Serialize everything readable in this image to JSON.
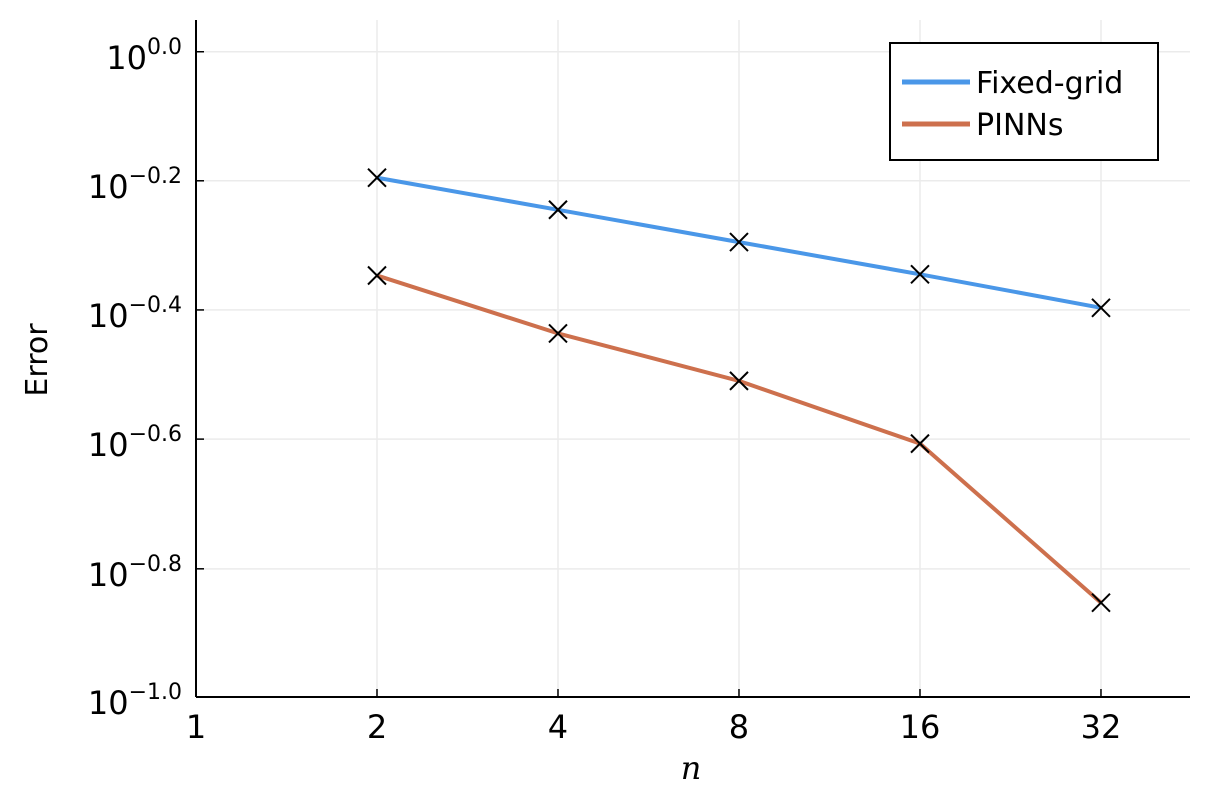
{
  "chart_data": {
    "type": "line",
    "xscale": "log2",
    "yscale": "log10",
    "xlabel": "n",
    "ylabel": "Error",
    "xlim": [
      1,
      45
    ],
    "ylim": [
      0.1,
      1.12
    ],
    "x_ticks": [
      1,
      2,
      4,
      8,
      16,
      32
    ],
    "x_tick_labels": [
      "1",
      "2",
      "4",
      "8",
      "16",
      "32"
    ],
    "y_ticks": [
      1.0,
      0.631,
      0.398,
      0.251,
      0.158,
      0.1
    ],
    "y_tick_labels": [
      {
        "base": "10",
        "exp": "0.0"
      },
      {
        "base": "10",
        "exp": "−0.2"
      },
      {
        "base": "10",
        "exp": "−0.4"
      },
      {
        "base": "10",
        "exp": "−0.6"
      },
      {
        "base": "10",
        "exp": "−0.8"
      },
      {
        "base": "10",
        "exp": "−1.0"
      }
    ],
    "grid": true,
    "legend_position": "top-right",
    "marker": "x",
    "series": [
      {
        "name": "Fixed-grid",
        "color": "#4a97e8",
        "x": [
          2,
          4,
          8,
          16,
          32
        ],
        "y": [
          0.638,
          0.569,
          0.507,
          0.452,
          0.401
        ]
      },
      {
        "name": "PINNs",
        "color": "#cd704d",
        "x": [
          2,
          4,
          8,
          16,
          32
        ],
        "y": [
          0.45,
          0.366,
          0.309,
          0.247,
          0.14
        ]
      }
    ]
  }
}
